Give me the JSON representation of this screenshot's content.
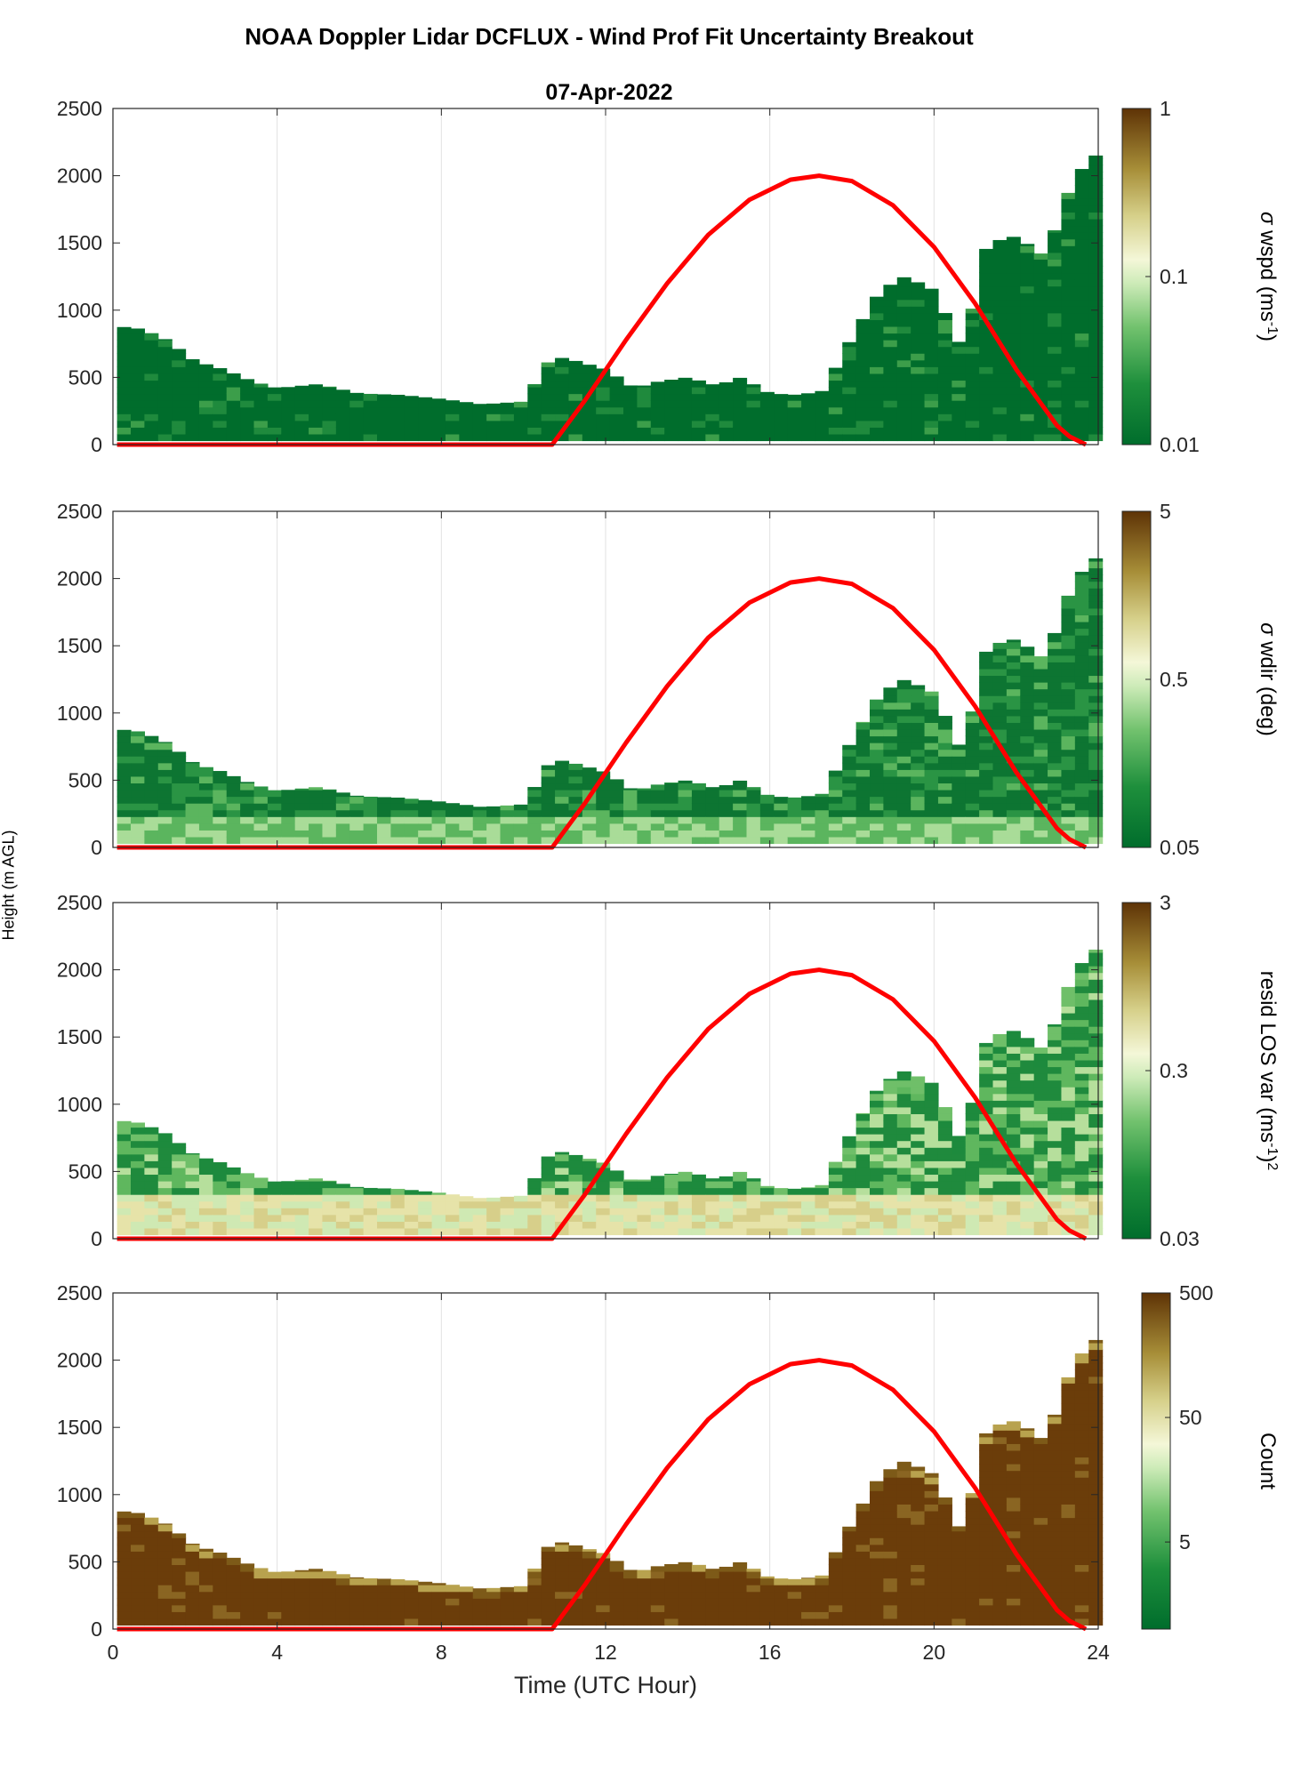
{
  "title": "NOAA Doppler Lidar DCFLUX - Wind Prof Fit Uncertainty Breakout",
  "subtitle": "07-Apr-2022",
  "shared_ylabel": "Height (m AGL)",
  "shared_xlabel": "Time (UTC Hour)",
  "colors": {
    "sun_curve": "#ff0000",
    "dark_green": "#006d2c",
    "light": "#f5f8dc",
    "dark_brown": "#6b3d0a"
  },
  "chart_data": [
    {
      "type": "heatmap",
      "panel": "sigma_wspd",
      "colorbar_label_prefix": "σ",
      "colorbar_label_main": "wspd (ms",
      "colorbar_label_sup": "-1",
      "colorbar_label_tail": ")",
      "colorbar_scale": "log",
      "colorbar_ticks": [
        "0.01",
        "0.1",
        "1"
      ],
      "clim": [
        0.01,
        1
      ],
      "xlim": [
        0,
        24
      ],
      "ylim": [
        0,
        2500
      ],
      "yticks": [
        "0",
        "500",
        "1000",
        "1500",
        "2000",
        "2500"
      ],
      "grid": true
    },
    {
      "type": "heatmap",
      "panel": "sigma_wdir",
      "colorbar_label_prefix": "σ",
      "colorbar_label_main": "wdir (deg)",
      "colorbar_label_sup": "",
      "colorbar_label_tail": "",
      "colorbar_scale": "log",
      "colorbar_ticks": [
        "0.05",
        "0.5",
        "5"
      ],
      "clim": [
        0.05,
        5
      ],
      "xlim": [
        0,
        24
      ],
      "ylim": [
        0,
        2500
      ],
      "yticks": [
        "0",
        "500",
        "1000",
        "1500",
        "2000",
        "2500"
      ],
      "grid": true
    },
    {
      "type": "heatmap",
      "panel": "resid_los_var",
      "colorbar_label_prefix": "",
      "colorbar_label_main": "resid LOS var (ms",
      "colorbar_label_sup": "-1",
      "colorbar_label_tail": ")",
      "colorbar_label_sup2": "2",
      "colorbar_scale": "log",
      "colorbar_ticks": [
        "0.03",
        "0.3",
        "3"
      ],
      "clim": [
        0.03,
        3
      ],
      "xlim": [
        0,
        24
      ],
      "ylim": [
        0,
        2500
      ],
      "yticks": [
        "0",
        "500",
        "1000",
        "1500",
        "2000",
        "2500"
      ],
      "grid": true
    },
    {
      "type": "heatmap",
      "panel": "count",
      "colorbar_label_prefix": "",
      "colorbar_label_main": "Count",
      "colorbar_label_sup": "",
      "colorbar_label_tail": "",
      "colorbar_scale": "log",
      "colorbar_ticks": [
        "5",
        "50",
        "500"
      ],
      "clim": [
        1,
        500
      ],
      "xlim": [
        0,
        24
      ],
      "ylim": [
        0,
        2500
      ],
      "yticks": [
        "0",
        "500",
        "1000",
        "1500",
        "2000",
        "2500"
      ],
      "xticks": [
        "0",
        "4",
        "8",
        "12",
        "16",
        "20",
        "24"
      ],
      "grid": true
    }
  ],
  "sun_curve": {
    "description_units": "x in UTC hour, y in m AGL",
    "x": [
      0.1,
      10.7,
      11.5,
      12.5,
      13.5,
      14.5,
      15.5,
      16.5,
      17.2,
      18,
      19,
      20,
      21,
      22,
      23,
      23.3,
      23.7
    ],
    "y": [
      0,
      0,
      330,
      780,
      1200,
      1560,
      1820,
      1970,
      2000,
      1960,
      1780,
      1470,
      1050,
      560,
      140,
      60,
      0
    ]
  },
  "profile_top": {
    "description_units": "x in UTC hour, approximate data top in m AGL",
    "x": [
      0.1,
      0.7,
      1.3,
      2.0,
      2.7,
      3.4,
      4.0,
      5.0,
      6.0,
      7.0,
      8.0,
      9.0,
      10.0,
      10.7,
      11.3,
      12.0,
      12.7,
      13.3,
      14.0,
      14.7,
      15.3,
      16.0,
      16.7,
      17.3,
      18.0,
      18.7,
      19.3,
      20.0,
      20.7,
      21.3,
      22.0,
      22.7,
      23.3,
      23.8
    ],
    "y": [
      880,
      860,
      780,
      620,
      560,
      470,
      420,
      450,
      380,
      370,
      340,
      300,
      320,
      660,
      620,
      560,
      420,
      470,
      500,
      440,
      500,
      380,
      370,
      400,
      800,
      1150,
      1250,
      1150,
      700,
      1500,
      1550,
      1400,
      1900,
      2150
    ]
  }
}
